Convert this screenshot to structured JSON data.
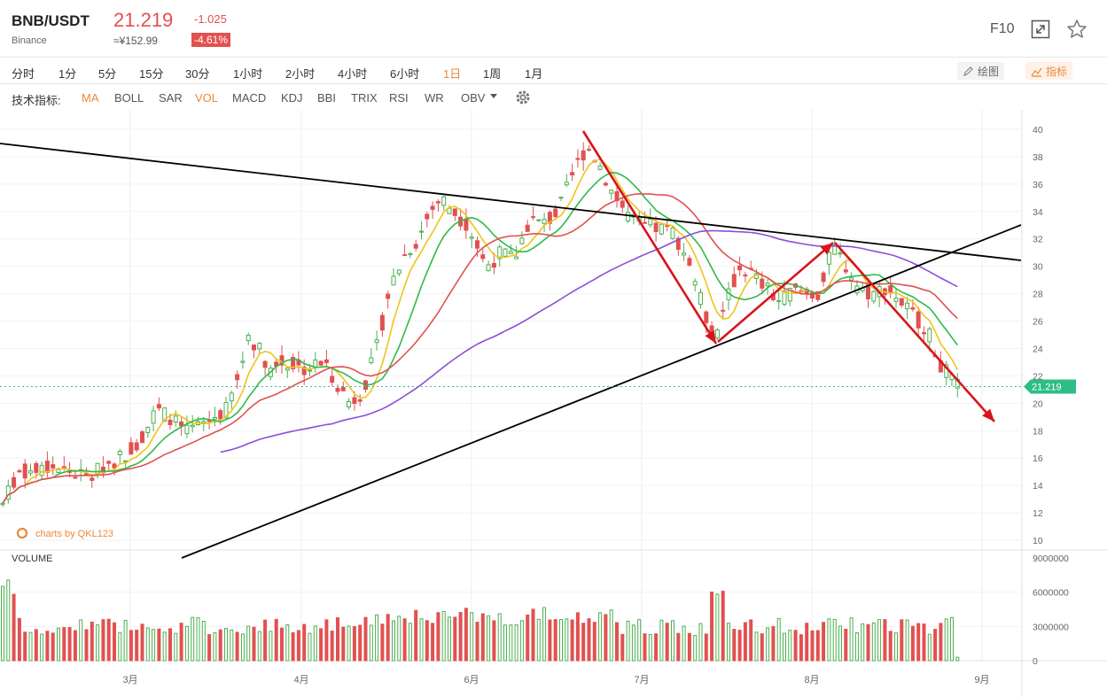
{
  "header": {
    "symbol": "BNB/USDT",
    "exchange": "Binance",
    "price": "21.219",
    "price_cny": "≈¥152.99",
    "change": "-1.025",
    "change_pct": "-4.61%",
    "f10_label": "F10",
    "colors": {
      "down": "#e25050",
      "up": "#4caf50",
      "accent": "#e8893a"
    }
  },
  "periods": [
    {
      "label": "分时"
    },
    {
      "label": "1分"
    },
    {
      "label": "5分"
    },
    {
      "label": "15分"
    },
    {
      "label": "30分"
    },
    {
      "label": "1小时"
    },
    {
      "label": "2小时"
    },
    {
      "label": "4小时"
    },
    {
      "label": "6小时"
    },
    {
      "label": "1日",
      "active": true
    },
    {
      "label": "1周"
    },
    {
      "label": "1月"
    }
  ],
  "tools": {
    "draw_label": "绘图",
    "indicator_label": "指标"
  },
  "indicators": {
    "label": "技术指标:",
    "items": [
      {
        "label": "MA",
        "active": true
      },
      {
        "label": "BOLL"
      },
      {
        "label": "SAR"
      },
      {
        "label": "VOL",
        "active": true
      },
      {
        "label": "MACD"
      },
      {
        "label": "KDJ"
      },
      {
        "label": "BBI"
      },
      {
        "label": "TRIX"
      },
      {
        "label": "RSI"
      },
      {
        "label": "WR"
      },
      {
        "label": "OBV"
      }
    ]
  },
  "chart_data": {
    "type": "candlestick",
    "watermark": "charts by QKL123",
    "last_price_label": "21.219",
    "volume_label": "VOLUME",
    "x_ticks": [
      "3月",
      "4月",
      "6月",
      "7月",
      "8月",
      "9月"
    ],
    "y_ticks": [
      10,
      12,
      14,
      16,
      18,
      20,
      22,
      24,
      26,
      28,
      30,
      32,
      34,
      36,
      38,
      40
    ],
    "ylim": [
      9,
      41
    ],
    "vol_ticks": [
      "9000000",
      "6000000",
      "3000000",
      "0"
    ],
    "vol_lim": [
      0,
      9000000
    ],
    "price_path": [
      [
        0,
        12.2
      ],
      [
        20,
        15.0
      ],
      [
        40,
        15.0
      ],
      [
        60,
        15.4
      ],
      [
        80,
        15.0
      ],
      [
        100,
        14.5
      ],
      [
        118,
        15.5
      ],
      [
        140,
        16.2
      ],
      [
        160,
        17.5
      ],
      [
        176,
        19.5
      ],
      [
        192,
        19.0
      ],
      [
        210,
        17.8
      ],
      [
        230,
        18.5
      ],
      [
        255,
        19.5
      ],
      [
        270,
        22.0
      ],
      [
        280,
        25.0
      ],
      [
        292,
        24.0
      ],
      [
        305,
        22.5
      ],
      [
        320,
        23.0
      ],
      [
        345,
        22.5
      ],
      [
        365,
        23.0
      ],
      [
        380,
        21.5
      ],
      [
        395,
        20.0
      ],
      [
        410,
        21.0
      ],
      [
        425,
        24.0
      ],
      [
        440,
        28.5
      ],
      [
        458,
        31.0
      ],
      [
        472,
        32.0
      ],
      [
        485,
        34.0
      ],
      [
        498,
        35.0
      ],
      [
        512,
        34.0
      ],
      [
        528,
        33.0
      ],
      [
        548,
        30.0
      ],
      [
        566,
        31.0
      ],
      [
        580,
        30.5
      ],
      [
        598,
        33.5
      ],
      [
        612,
        33.0
      ],
      [
        630,
        34.0
      ],
      [
        648,
        37.0
      ],
      [
        662,
        38.8
      ],
      [
        676,
        37.5
      ],
      [
        690,
        35.5
      ],
      [
        705,
        34.0
      ],
      [
        720,
        33.0
      ],
      [
        740,
        32.8
      ],
      [
        760,
        32.5
      ],
      [
        780,
        30.0
      ],
      [
        795,
        26.5
      ],
      [
        808,
        24.5
      ],
      [
        820,
        27.5
      ],
      [
        835,
        30.0
      ],
      [
        848,
        29.5
      ],
      [
        862,
        28.5
      ],
      [
        878,
        27.5
      ],
      [
        895,
        28.2
      ],
      [
        910,
        28.0
      ],
      [
        925,
        28.0
      ],
      [
        940,
        31.5
      ],
      [
        955,
        30.0
      ],
      [
        970,
        28.3
      ],
      [
        985,
        28.0
      ],
      [
        1000,
        28.5
      ],
      [
        1015,
        27.5
      ],
      [
        1030,
        26.5
      ],
      [
        1045,
        25.5
      ],
      [
        1060,
        23.0
      ],
      [
        1070,
        22.0
      ],
      [
        1080,
        21.2
      ]
    ],
    "ma_lines": [
      {
        "color": "#f0c419",
        "period": 5,
        "start": 0
      },
      {
        "color": "#2fb94a",
        "period": 10,
        "start": 0
      },
      {
        "color": "#e25050",
        "period": 20,
        "start": 0
      },
      {
        "color": "#8a4fd8",
        "period": 60,
        "start": 245
      }
    ],
    "trendlines": [
      {
        "color": "#000",
        "points": [
          [
            0,
            162
          ],
          [
            1152,
            294
          ]
        ]
      },
      {
        "color": "#000",
        "points": [
          [
            205,
            630
          ],
          [
            1152,
            254
          ]
        ]
      }
    ],
    "arrows": [
      {
        "color": "#d8141b",
        "points": [
          [
            658,
            148
          ],
          [
            808,
            388
          ]
        ]
      },
      {
        "color": "#d8141b",
        "points": [
          [
            810,
            386
          ],
          [
            940,
            274
          ]
        ]
      },
      {
        "color": "#d8141b",
        "points": [
          [
            942,
            274
          ],
          [
            1122,
            476
          ]
        ]
      }
    ]
  }
}
